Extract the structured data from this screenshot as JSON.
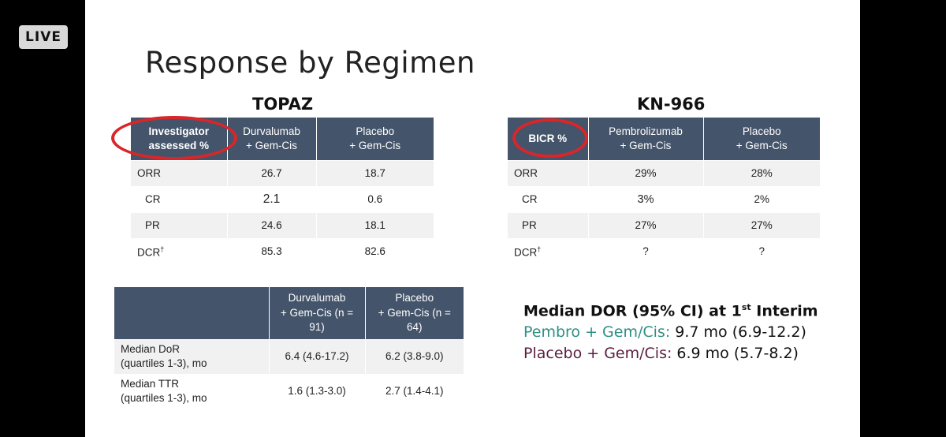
{
  "live_badge": "LIVE",
  "slide": {
    "title": "Response by Regimen",
    "topaz": {
      "heading": "TOPAZ",
      "header": [
        "Investigator assessed %",
        "Durvalumab\n+ Gem-Cis",
        "Placebo\n+ Gem-Cis"
      ],
      "rows": [
        {
          "label": "ORR",
          "values": [
            "26.7",
            "18.7"
          ]
        },
        {
          "label": "CR",
          "values": [
            "2.1",
            "0.6"
          ]
        },
        {
          "label": "PR",
          "values": [
            "24.6",
            "18.1"
          ]
        },
        {
          "label": "DCR",
          "label_sup": "†",
          "values": [
            "85.3",
            "82.6"
          ]
        }
      ]
    },
    "kn966": {
      "heading": "KN-966",
      "header": [
        "BICR %",
        "Pembrolizumab\n+ Gem-Cis",
        "Placebo\n+ Gem-Cis"
      ],
      "rows": [
        {
          "label": "ORR",
          "values": [
            "29%",
            "28%"
          ]
        },
        {
          "label": "CR",
          "values": [
            "3%",
            "2%"
          ]
        },
        {
          "label": "PR",
          "values": [
            "27%",
            "27%"
          ]
        },
        {
          "label": "DCR",
          "label_sup": "†",
          "values": [
            "?",
            "?"
          ]
        }
      ]
    },
    "topaz_dor": {
      "header": [
        "",
        "Durvalumab\n+ Gem-Cis (n =\n91)",
        "Placebo\n+ Gem-Cis (n =\n64)"
      ],
      "rows": [
        {
          "label": "Median DoR\n(quartiles 1-3), mo",
          "values": [
            "6.4 (4.6-17.2)",
            "6.2 (3.8-9.0)"
          ]
        },
        {
          "label": "Median TTR\n(quartiles 1-3), mo",
          "values": [
            "1.6 (1.3-3.0)",
            "2.7 (1.4-4.1)"
          ]
        }
      ]
    },
    "dor_summary": {
      "title_main": "Median DOR (95% CI) at 1",
      "title_sup": "st",
      "title_end": " Interim",
      "line1_label": "Pembro + Gem/Cis:",
      "line1_value": " 9.7 mo (6.9-12.2)",
      "line2_label": "Placebo + Gem/Cis:",
      "line2_value": " 6.9 mo (5.7-8.2)"
    },
    "colors": {
      "header_bg": "#44546a",
      "circle": "#d8262a",
      "pembro_text": "#2f8f86",
      "placebo_text": "#5b1e3f"
    }
  }
}
